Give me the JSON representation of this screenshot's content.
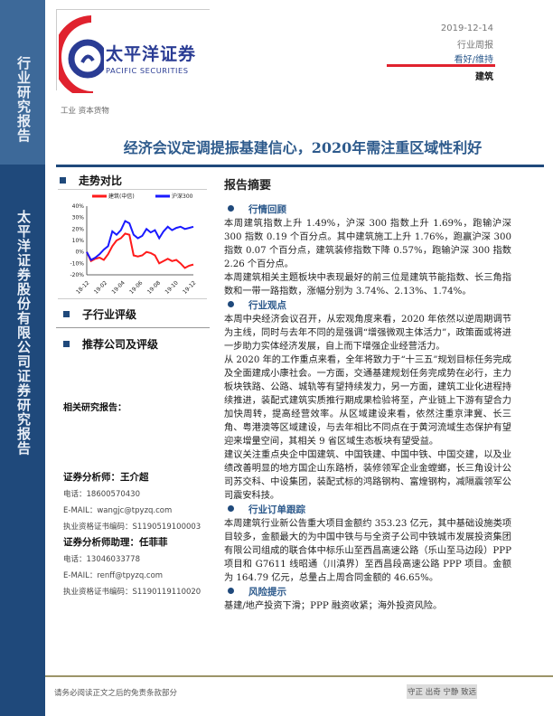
{
  "sidebar": {
    "top_label": "行业研究报告",
    "bottom_label": "太平洋证券股份有限公司证券研究报告"
  },
  "header": {
    "logo_cn": "太平洋证券",
    "logo_en": "PACIFIC SECURITIES",
    "date": "2019-12-14",
    "report_type": "行业周报",
    "rating": "看好/维持",
    "industry": "建筑",
    "category": "工业 资本货物",
    "colors": {
      "brand_blue": "#1f497b",
      "brand_red": "#e0222e"
    }
  },
  "title": "经济会议定调提振基建信心，2020年需注重区域性利好",
  "left": {
    "trend_title": "走势对比",
    "sub_rating_title": "子行业评级",
    "recommend_title": "推荐公司及评级",
    "related_title": "相关研究报告：",
    "analyst1": {
      "name": "证券分析师：王介超",
      "phone": "电话：18600570430",
      "email": "E-MAIL：wangjc@tpyzq.com",
      "cert": "执业资格证书编码：S1190519100003"
    },
    "analyst2": {
      "name": "证券分析师助理：任菲菲",
      "phone": "电话：13046033778",
      "email": "E-MAIL：renff@tpyzq.com",
      "cert": "执业资格证书编码：S1190119110020"
    }
  },
  "chart_data": {
    "type": "line",
    "x_ticks": [
      "18-12",
      "19-02",
      "19-04",
      "19-06",
      "19-08",
      "19-10",
      "19-12"
    ],
    "y_ticks": [
      "40%",
      "30%",
      "20%",
      "10%",
      "0%",
      "-10%",
      "-20%"
    ],
    "ylim": [
      -20,
      40
    ],
    "legend_position": "top",
    "series": [
      {
        "name": "建筑(中信)",
        "color": "#ff1a1a",
        "values": [
          0,
          -8,
          -6,
          -5,
          -7,
          -2,
          5,
          10,
          12,
          16,
          15,
          -3,
          -4,
          -3,
          0,
          -1,
          -3,
          -10,
          -8,
          -6,
          -8,
          -7,
          -10,
          -14,
          -12,
          -11
        ]
      },
      {
        "name": "沪深300",
        "color": "#1a1aff",
        "values": [
          0,
          -7,
          -5,
          -2,
          2,
          5,
          18,
          15,
          19,
          27,
          25,
          15,
          12,
          14,
          20,
          17,
          19,
          12,
          18,
          22,
          19,
          21,
          22,
          20,
          21,
          22
        ]
      }
    ]
  },
  "summary": {
    "title": "报告摘要",
    "sections": [
      {
        "heading": "行情回顾",
        "paragraphs": [
          "本周建筑指数上升 1.49%，沪深 300 指数上升 1.69%，跑输沪深 300 指数 0.19 个百分点。其中建筑施工上升 1.76%，跑赢沪深 300 指数 0.07 个百分点，建筑装修指数下降 0.57%，跑输沪深 300 指数 2.26 个百分点。",
          "本周建筑相关主题板块中表现最好的前三位是建筑节能指数、长三角指数和一带一路指数，涨幅分别为 3.74%、2.13%、1.74%。"
        ]
      },
      {
        "heading": "行业观点",
        "paragraphs": [
          "本周中央经济会议召开，从宏观角度来看，2020 年依然以逆周期调节为主线，同时与去年不同的是强调“增强微观主体活力”，政策面或将进一步助力实体经济发展，自上而下增强企业经营活力。",
          "从 2020 年的工作重点来看，全年将致力于“十三五”规划目标任务完成及全面建成小康社会。一方面，交通基建规划任务完成势在必行，主力板块铁路、公路、城轨等有望持续发力，另一方面，建筑工业化进程持续推进，装配式建筑实质推行期成果检验将至，产业链上下游有望合力加快周转，提高经营效率。从区域建设来看，依然注重京津冀、长三角、粤港澳等区域建设，与去年相比不同点在于黄河流域生态保护有望迎来增量空间，其相关 9 省区域生态板块有望受益。",
          "建议关注重点央企中国建筑、中国铁建、中国中铁、中国交建，以及业绩改善明显的地方国企山东路桥，装修领军企业金螳螂，长三角设计公司苏交科、中设集团，装配式标的鸿路钢构、富煌钢构，减隔震领军公司震安科技。"
        ]
      },
      {
        "heading": "行业订单跟踪",
        "paragraphs": [
          "本周建筑行业新公告重大项目金额约 353.23 亿元，其中基础设施类项目较多，金额最大的为中国中铁与与全资子公司中铁城市发展投资集团有限公司组成的联合体中标乐山至西昌高速公路（乐山至马边段）PPP 项目和 G7611 线昭通（川滇界）至西昌段高速公路 PPP 项目。金额为 164.79 亿元，总量占上周合同金额的 46.65%。"
        ]
      },
      {
        "heading": "风险提示",
        "paragraphs": [
          "基建/地产投资下滑；PPP 融资收紧；海外投资风险。"
        ]
      }
    ]
  },
  "footer": {
    "disclaimer": "请务必阅读正文之后的免责条款部分",
    "motto": "守正 出奇 宁静 致远"
  }
}
